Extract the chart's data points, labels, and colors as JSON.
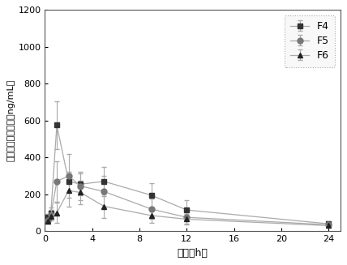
{
  "title": "",
  "xlabel": "时间（h）",
  "ylabel": "紫杉醇血浆中浓度（ng/mL）",
  "xlim": [
    0,
    25
  ],
  "ylim": [
    0,
    1200
  ],
  "xticks": [
    0,
    4,
    8,
    12,
    16,
    20,
    24
  ],
  "yticks": [
    0,
    200,
    400,
    600,
    800,
    1000,
    1200
  ],
  "time_points": [
    0.25,
    0.5,
    1,
    2,
    3,
    5,
    9,
    12,
    24
  ],
  "F4": {
    "mean": [
      75,
      100,
      575,
      270,
      255,
      270,
      195,
      115,
      40
    ],
    "err": [
      20,
      30,
      130,
      50,
      60,
      80,
      65,
      55,
      15
    ]
  },
  "F5": {
    "mean": [
      60,
      90,
      270,
      300,
      245,
      215,
      120,
      75,
      35
    ],
    "err": [
      15,
      25,
      110,
      120,
      75,
      85,
      55,
      35,
      12
    ]
  },
  "F6": {
    "mean": [
      55,
      80,
      100,
      220,
      210,
      135,
      85,
      65,
      30
    ],
    "err": [
      15,
      20,
      55,
      85,
      65,
      65,
      40,
      30,
      10
    ]
  },
  "color_F4": "#333333",
  "color_F5": "#777777",
  "color_F6": "#222222",
  "line_color": "#aaaaaa",
  "bg_color": "#ffffff",
  "legend_labels": [
    "F4",
    "F5",
    "F6"
  ]
}
